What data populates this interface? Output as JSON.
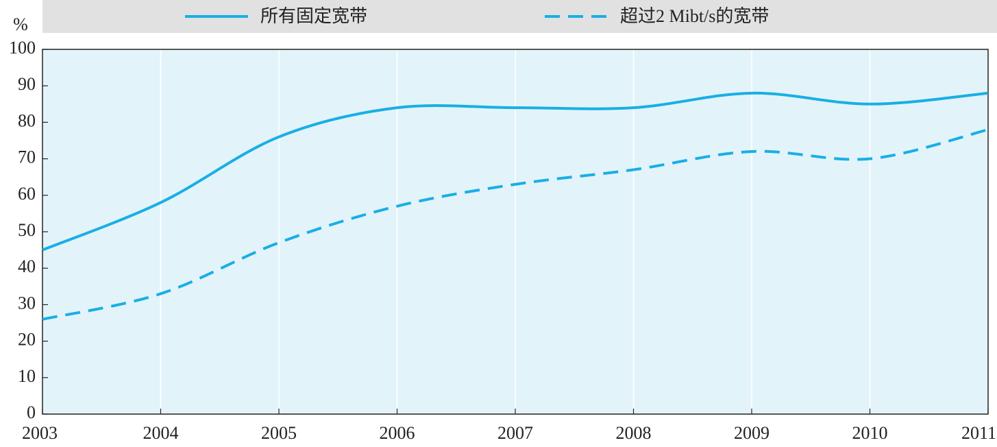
{
  "chart_data": {
    "type": "line",
    "y_label": "%",
    "x": [
      2003,
      2004,
      2005,
      2006,
      2007,
      2008,
      2009,
      2010,
      2011
    ],
    "series": [
      {
        "name": "所有固定宽带",
        "color": "#1aaee5",
        "style": "solid",
        "values": [
          45,
          58,
          76,
          84,
          84,
          84,
          88,
          85,
          88
        ]
      },
      {
        "name": "超过2 Mibt/s的宽带",
        "color": "#1aaee5",
        "style": "dashed",
        "values": [
          26,
          33,
          47,
          57,
          63,
          67,
          72,
          70,
          78
        ]
      }
    ],
    "xlim": [
      2003,
      2011
    ],
    "xticks": [
      2003,
      2004,
      2005,
      2006,
      2007,
      2008,
      2009,
      2010,
      2011
    ],
    "ylim": [
      0,
      100
    ],
    "yticks": [
      0,
      10,
      20,
      30,
      40,
      50,
      60,
      70,
      80,
      90,
      100
    ],
    "grid": "x",
    "legend": "top"
  }
}
